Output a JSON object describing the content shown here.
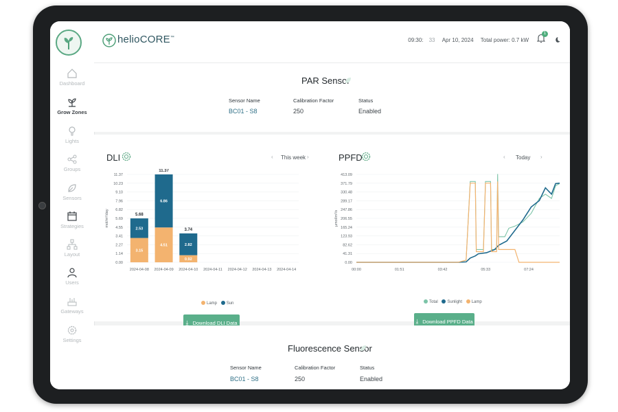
{
  "header": {
    "brand": "helioCORE",
    "brand_tm": "™",
    "time": "09:30",
    "time_seconds": "33",
    "date": "Apr 10, 2024",
    "power": "Total power: 0.7 kW",
    "notification_count": "1"
  },
  "sidebar": {
    "items": [
      {
        "label": "Dashboard",
        "icon": "home-icon"
      },
      {
        "label": "Grow Zones",
        "icon": "sprout-icon"
      },
      {
        "label": "Lights",
        "icon": "bulb-icon"
      },
      {
        "label": "Groups",
        "icon": "share-icon"
      },
      {
        "label": "Sensors",
        "icon": "leaf-icon"
      },
      {
        "label": "Strategies",
        "icon": "calendar-icon"
      },
      {
        "label": "Layout",
        "icon": "layout-icon"
      },
      {
        "label": "Users",
        "icon": "user-icon"
      },
      {
        "label": "Gateways",
        "icon": "gateway-icon"
      },
      {
        "label": "Settings",
        "icon": "gear-icon"
      }
    ],
    "active": "Grow Zones"
  },
  "par_sensor": {
    "title": "PAR Sensor",
    "sensor_name_label": "Sensor Name",
    "sensor_name": "BC01 - S8",
    "calibration_label": "Calibration Factor",
    "calibration": "250",
    "status_label": "Status",
    "status": "Enabled"
  },
  "dli": {
    "title": "DLI",
    "period": "This week",
    "download": "Download DLI Data",
    "legend": [
      "Lamp",
      "Sun"
    ]
  },
  "ppfd": {
    "title": "PPFD",
    "period": "Today",
    "download": "Download PPFD Data",
    "legend": [
      "Total",
      "Sunlight",
      "Lamp"
    ]
  },
  "fluorescence_sensor": {
    "title": "Fluorescence Sensor",
    "sensor_name_label": "Sensor Name",
    "sensor_name": "BC01 - S8",
    "calibration_label": "Calibration Factor",
    "calibration": "250",
    "status_label": "Status",
    "status": "Enabled"
  },
  "colors": {
    "accent": "#5aaf8a",
    "lamp": "#f3b36f",
    "sun": "#1f6a8d",
    "total": "#7cc4a8"
  },
  "chart_data": [
    {
      "type": "bar",
      "title": "DLI",
      "ylabel": "mol/m²/day",
      "categories": [
        "2024-04-08",
        "2024-04-09",
        "2024-04-10",
        "2024-04-11",
        "2024-04-12",
        "2024-04-13",
        "2024-04-14"
      ],
      "yticks": [
        "0.00",
        "1.14",
        "2.27",
        "3.41",
        "4.55",
        "5.69",
        "6.82",
        "7.96",
        "9.10",
        "10.23",
        "11.37"
      ],
      "ylim": [
        0,
        11.37
      ],
      "series": [
        {
          "name": "Lamp",
          "values": [
            3.15,
            4.51,
            0.92,
            0,
            0,
            0,
            0
          ],
          "labels": [
            "3.15",
            "4.51",
            "0.92",
            "",
            "",
            "",
            ""
          ]
        },
        {
          "name": "Sun",
          "values": [
            2.53,
            6.86,
            2.82,
            0,
            0,
            0,
            0
          ],
          "labels": [
            "2.53",
            "6.86",
            "2.82",
            "",
            "",
            "",
            ""
          ]
        }
      ],
      "totals": [
        "5.68",
        "11.37",
        "3.74",
        "",
        "",
        "",
        ""
      ],
      "grid": true,
      "legend": "bottom"
    },
    {
      "type": "line",
      "title": "PPFD",
      "ylabel": "µmol/m²/s",
      "xticks": [
        "00:00",
        "01:51",
        "03:42",
        "05:33",
        "07:24"
      ],
      "yticks": [
        "0.00",
        "41.31",
        "82.62",
        "123.93",
        "165.24",
        "206.55",
        "247.86",
        "289.17",
        "330.48",
        "371.79",
        "413.09"
      ],
      "ylim": [
        0,
        413.09
      ],
      "xlim": [
        0,
        1
      ],
      "series": [
        {
          "name": "Total",
          "points": [
            [
              0,
              0
            ],
            [
              0.5,
              0
            ],
            [
              0.54,
              10
            ],
            [
              0.56,
              380
            ],
            [
              0.585,
              380
            ],
            [
              0.59,
              60
            ],
            [
              0.625,
              60
            ],
            [
              0.635,
              380
            ],
            [
              0.66,
              380
            ],
            [
              0.665,
              60
            ],
            [
              0.69,
              60
            ],
            [
              0.695,
              415
            ],
            [
              0.7,
              120
            ],
            [
              0.73,
              120
            ],
            [
              0.75,
              160
            ],
            [
              0.78,
              170
            ],
            [
              0.82,
              190
            ],
            [
              0.86,
              230
            ],
            [
              0.9,
              300
            ],
            [
              0.93,
              320
            ],
            [
              0.96,
              300
            ],
            [
              0.98,
              360
            ],
            [
              1,
              370
            ]
          ]
        },
        {
          "name": "Sunlight",
          "points": [
            [
              0,
              0
            ],
            [
              0.5,
              0
            ],
            [
              0.54,
              2
            ],
            [
              0.56,
              20
            ],
            [
              0.585,
              30
            ],
            [
              0.6,
              40
            ],
            [
              0.64,
              45
            ],
            [
              0.68,
              60
            ],
            [
              0.7,
              80
            ],
            [
              0.74,
              100
            ],
            [
              0.78,
              150
            ],
            [
              0.82,
              200
            ],
            [
              0.86,
              260
            ],
            [
              0.9,
              290
            ],
            [
              0.93,
              350
            ],
            [
              0.96,
              320
            ],
            [
              0.98,
              370
            ],
            [
              1,
              372
            ]
          ]
        },
        {
          "name": "Lamp",
          "points": [
            [
              0,
              0
            ],
            [
              0.5,
              0
            ],
            [
              0.54,
              10
            ],
            [
              0.56,
              372
            ],
            [
              0.585,
              372
            ],
            [
              0.59,
              50
            ],
            [
              0.625,
              50
            ],
            [
              0.635,
              372
            ],
            [
              0.66,
              372
            ],
            [
              0.665,
              50
            ],
            [
              0.69,
              50
            ],
            [
              0.695,
              380
            ],
            [
              0.7,
              60
            ],
            [
              0.78,
              60
            ],
            [
              0.8,
              0
            ],
            [
              1,
              0
            ]
          ]
        }
      ],
      "grid": true,
      "legend": "bottom"
    }
  ]
}
